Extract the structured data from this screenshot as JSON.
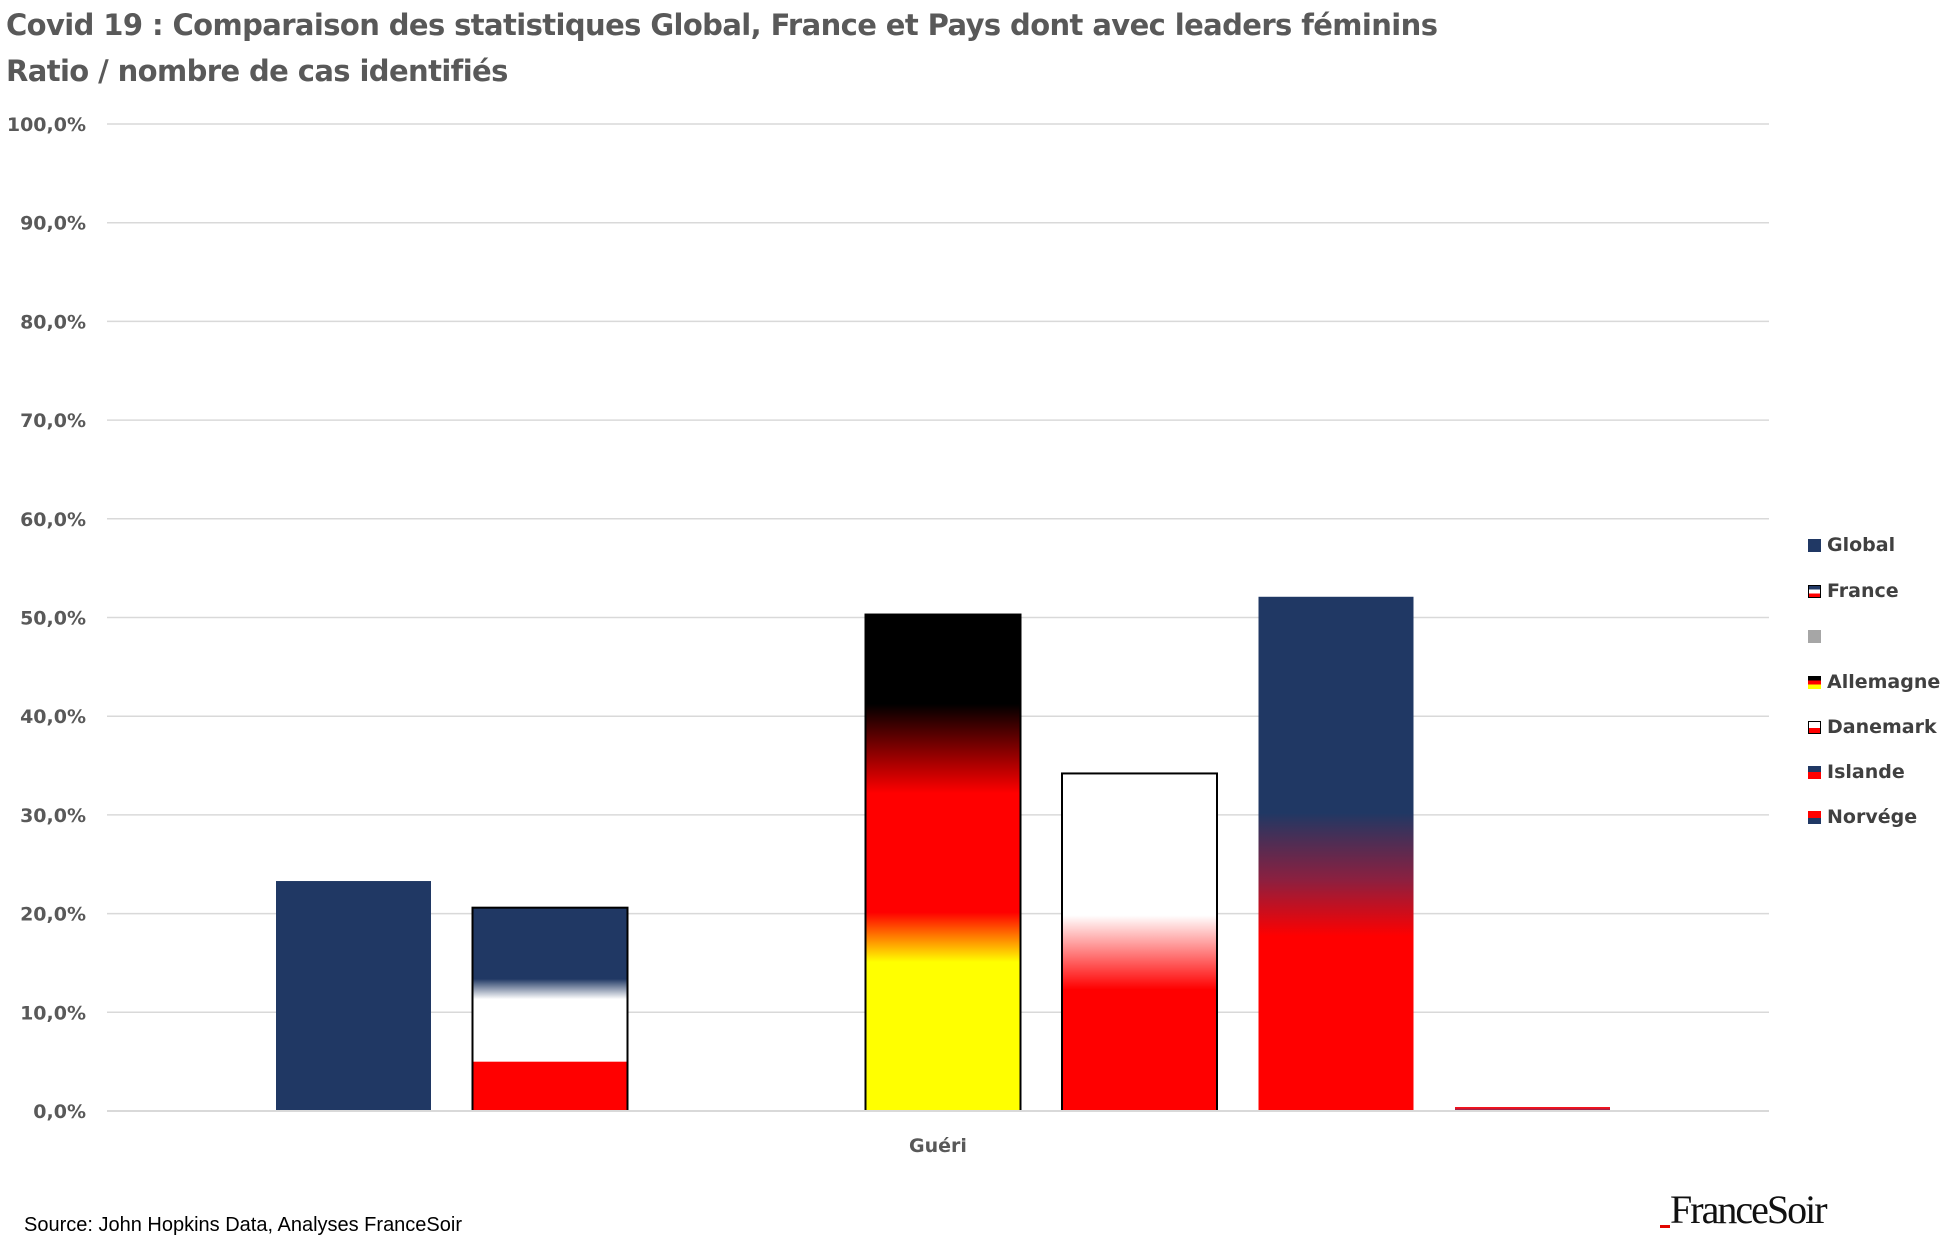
{
  "title_line1": "Covid 19 : Comparaison des statistiques Global, France et Pays dont avec leaders féminins",
  "title_line2": "Ratio / nombre de cas identifiés",
  "source": "Source: John Hopkins Data, Analyses FranceSoir",
  "logo_text": "FranceSoir",
  "colors": {
    "navy": "#203864",
    "red": "#ff0000",
    "black": "#000000",
    "yellow": "#ffff00",
    "white": "#ffffff",
    "grey": "#a6a6a6",
    "grid": "#d9d9d9",
    "text": "#595959"
  },
  "chart_data": {
    "type": "bar",
    "title": "Covid 19 : Comparaison des statistiques Global, France et Pays dont avec leaders féminins",
    "subtitle": "Ratio / nombre de cas identifiés",
    "categories": [
      "Guéri"
    ],
    "ylim": [
      0,
      100
    ],
    "yticks": [
      "0,0%",
      "10,0%",
      "20,0%",
      "30,0%",
      "40,0%",
      "50,0%",
      "60,0%",
      "70,0%",
      "80,0%",
      "90,0%",
      "100,0%"
    ],
    "grid": true,
    "legend_position": "right",
    "series": [
      {
        "name": "Global",
        "values": [
          23.3
        ],
        "fill": "flag-global"
      },
      {
        "name": "France",
        "values": [
          20.6
        ],
        "fill": "flag-france"
      },
      {
        "name": "",
        "values": [
          0
        ],
        "fill": "grey"
      },
      {
        "name": "Allemagne",
        "values": [
          50.3
        ],
        "fill": "flag-germany"
      },
      {
        "name": "Danemark",
        "values": [
          34.2
        ],
        "fill": "flag-denmark"
      },
      {
        "name": "Islande",
        "values": [
          52.1
        ],
        "fill": "flag-iceland"
      },
      {
        "name": "Norvége",
        "values": [
          0.4
        ],
        "fill": "flag-norway"
      }
    ]
  }
}
